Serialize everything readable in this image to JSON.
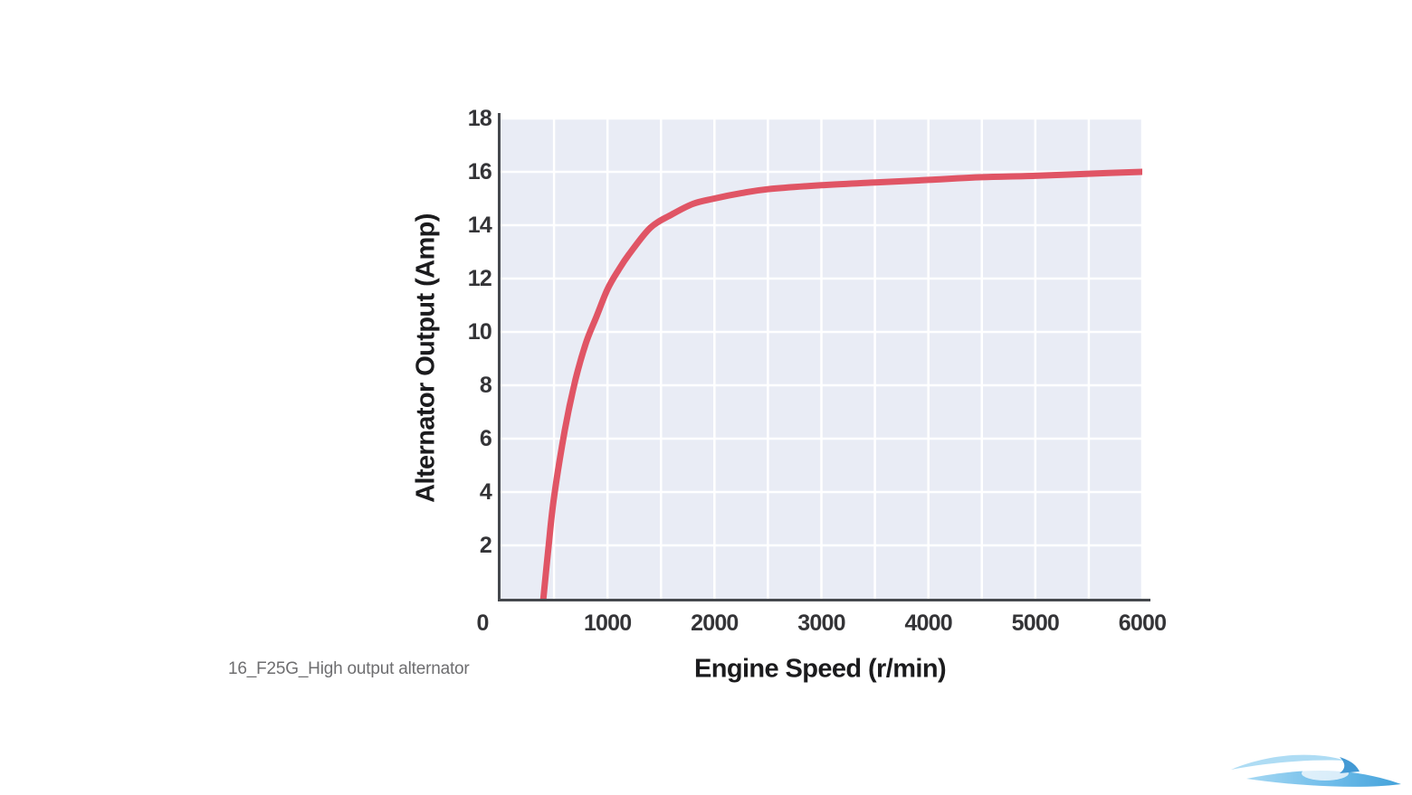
{
  "caption": "16_F25G_High output alternator",
  "watermark": {
    "icon": "wave-swoosh-logo",
    "color_light": "#a6d9f3",
    "color_mid": "#5fb5e8",
    "color_dark": "#2f8fd0"
  },
  "chart_data": {
    "type": "line",
    "title": "",
    "xlabel": "Engine Speed (r/min)",
    "ylabel": "Alternator Output (Amp)",
    "xlim": [
      0,
      6000
    ],
    "ylim": [
      0,
      18
    ],
    "x_ticks": [
      0,
      1000,
      2000,
      3000,
      4000,
      5000,
      6000
    ],
    "y_ticks": [
      2,
      4,
      6,
      8,
      10,
      12,
      14,
      16,
      18
    ],
    "x_grid_step": 500,
    "y_grid_step": 2,
    "grid": true,
    "legend_position": "none",
    "plot_bg_color": "#e9ecf5",
    "grid_color": "#ffffff",
    "axis_color": "#45484d",
    "series": [
      {
        "name": "High output alternator",
        "color": "#e05565",
        "points": [
          [
            400,
            0
          ],
          [
            450,
            2
          ],
          [
            500,
            3.8
          ],
          [
            600,
            6.3
          ],
          [
            700,
            8.2
          ],
          [
            800,
            9.6
          ],
          [
            900,
            10.6
          ],
          [
            1000,
            11.6
          ],
          [
            1100,
            12.3
          ],
          [
            1200,
            12.9
          ],
          [
            1400,
            13.9
          ],
          [
            1600,
            14.4
          ],
          [
            1800,
            14.8
          ],
          [
            2000,
            15.0
          ],
          [
            2250,
            15.2
          ],
          [
            2500,
            15.35
          ],
          [
            3000,
            15.5
          ],
          [
            3500,
            15.6
          ],
          [
            4000,
            15.7
          ],
          [
            4500,
            15.8
          ],
          [
            5000,
            15.85
          ],
          [
            5500,
            15.93
          ],
          [
            6000,
            16.0
          ]
        ]
      }
    ]
  }
}
